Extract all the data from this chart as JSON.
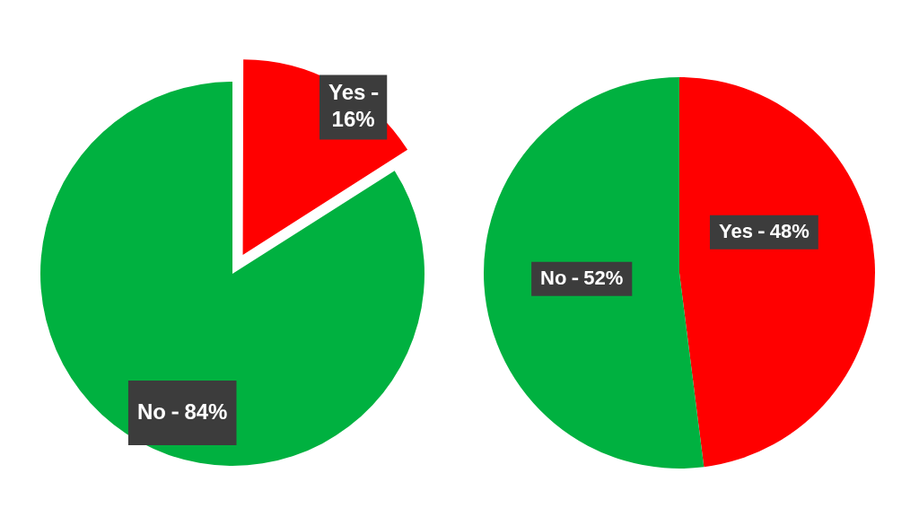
{
  "chart_data": [
    {
      "type": "pie",
      "categories": [
        "Yes",
        "No"
      ],
      "values": [
        16,
        84
      ],
      "colors": [
        "#ff0000",
        "#00b140"
      ],
      "value_labels": [
        "16%",
        "84%"
      ]
    },
    {
      "type": "pie",
      "categories": [
        "Yes",
        "No"
      ],
      "values": [
        48,
        52
      ],
      "colors": [
        "#ff0000",
        "#00b140"
      ],
      "value_labels": [
        "48%",
        "52%"
      ]
    }
  ]
}
